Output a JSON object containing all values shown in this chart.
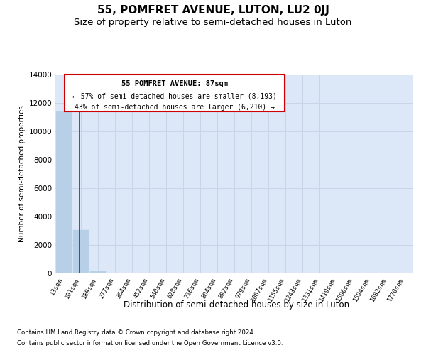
{
  "title": "55, POMFRET AVENUE, LUTON, LU2 0JJ",
  "subtitle": "Size of property relative to semi-detached houses in Luton",
  "xlabel": "Distribution of semi-detached houses by size in Luton",
  "ylabel": "Number of semi-detached properties",
  "footer_line1": "Contains HM Land Registry data © Crown copyright and database right 2024.",
  "footer_line2": "Contains public sector information licensed under the Open Government Licence v3.0.",
  "categories": [
    "13sqm",
    "101sqm",
    "189sqm",
    "277sqm",
    "364sqm",
    "452sqm",
    "540sqm",
    "628sqm",
    "716sqm",
    "804sqm",
    "892sqm",
    "979sqm",
    "1067sqm",
    "1155sqm",
    "1243sqm",
    "1331sqm",
    "1419sqm",
    "1506sqm",
    "1594sqm",
    "1682sqm",
    "1770sqm"
  ],
  "values": [
    11400,
    3050,
    175,
    10,
    5,
    3,
    2,
    1,
    1,
    1,
    1,
    1,
    1,
    0,
    0,
    0,
    0,
    0,
    0,
    0,
    0
  ],
  "bar_color": "#b8cfe8",
  "bar_edgecolor": "#b8cfe8",
  "property_line_x": 0.92,
  "annotation_text_line1": "55 POMFRET AVENUE: 87sqm",
  "annotation_text_line2": "← 57% of semi-detached houses are smaller (8,193)",
  "annotation_text_line3": "43% of semi-detached houses are larger (6,210) →",
  "ylim": [
    0,
    14000
  ],
  "yticks": [
    0,
    2000,
    4000,
    6000,
    8000,
    10000,
    12000,
    14000
  ],
  "vline_color": "#cc0000",
  "box_edgecolor": "#cc0000",
  "grid_color": "#c8d4e8",
  "bg_color": "#dce8f8",
  "title_fontsize": 11,
  "subtitle_fontsize": 9.5
}
